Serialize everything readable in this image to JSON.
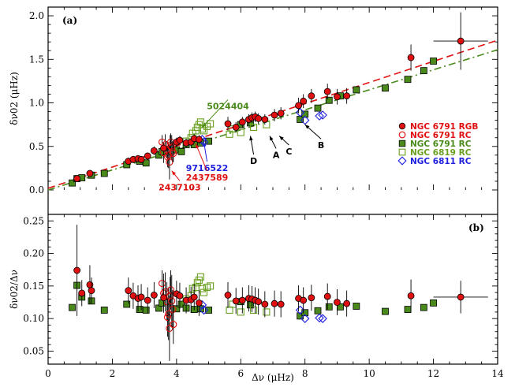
{
  "chart_data": [
    {
      "panel": "(a)",
      "type": "scatter",
      "xlabel": "Δν (μHz)",
      "ylabel": "δν02 (μHz)",
      "xlim": [
        0,
        14
      ],
      "ylim": [
        0,
        2.1
      ],
      "yticks": [
        "0.0",
        "0.5",
        "1.0",
        "1.5",
        "2.0"
      ],
      "legend": {
        "placement": "right-middle",
        "entries": [
          {
            "label": "NGC 6791 RGB",
            "marker": "filled-circle",
            "color": "#e01010"
          },
          {
            "label": "NGC 6791 RC",
            "marker": "open-circle",
            "color": "#e01010"
          },
          {
            "label": "NGC 6791 RC",
            "marker": "filled-square",
            "color": "#4a8a1a"
          },
          {
            "label": "NGC 6819 RC",
            "marker": "open-square",
            "color": "#6aa020"
          },
          {
            "label": "NGC 6811 RC",
            "marker": "open-diamond",
            "color": "#2020e0"
          }
        ]
      },
      "fit_lines": [
        {
          "style": "dashed",
          "color": "#e01010",
          "x": [
            0,
            14
          ],
          "y": [
            0.02,
            1.72
          ]
        },
        {
          "style": "dash-dot",
          "color": "#4a8a1a",
          "x": [
            0,
            14
          ],
          "y": [
            0.0,
            1.61
          ]
        }
      ],
      "annotations": [
        {
          "text": "5024404",
          "color": "#4a8a1a",
          "point": [
            4.8,
            0.72
          ],
          "label_at": [
            5.6,
            1.0
          ]
        },
        {
          "text": "9716522",
          "color": "#2020e0",
          "point": [
            4.85,
            0.55
          ],
          "label_at": [
            4.95,
            0.29
          ]
        },
        {
          "text": "2437589",
          "color": "#e01010",
          "point": [
            4.6,
            0.53
          ],
          "label_at": [
            4.95,
            0.18
          ]
        },
        {
          "text": "2437103",
          "color": "#e01010",
          "point": [
            3.85,
            0.22
          ],
          "label_at": [
            4.1,
            0.07
          ]
        },
        {
          "text": "D",
          "color": "#000000",
          "point": [
            6.3,
            0.62
          ],
          "label_at": [
            6.4,
            0.37
          ]
        },
        {
          "text": "A",
          "color": "#000000",
          "point": [
            6.9,
            0.62
          ],
          "label_at": [
            7.1,
            0.44
          ]
        },
        {
          "text": "C",
          "color": "#000000",
          "point": [
            7.2,
            0.62
          ],
          "label_at": [
            7.5,
            0.48
          ]
        },
        {
          "text": "B",
          "color": "#000000",
          "point": [
            8.0,
            0.75
          ],
          "label_at": [
            8.5,
            0.55
          ]
        }
      ],
      "series": [
        {
          "name": "NGC 6791 RGB",
          "marker": "filled-circle",
          "color": "#e01010",
          "x": [
            0.9,
            1.3,
            2.5,
            2.65,
            2.8,
            2.9,
            3.1,
            3.3,
            3.6,
            4.0,
            4.1,
            4.3,
            4.45,
            4.55,
            4.7,
            5.6,
            5.85,
            6.05,
            6.25,
            6.35,
            6.45,
            6.55,
            6.75,
            7.05,
            7.25,
            7.8,
            7.95,
            8.2,
            8.7,
            9.0,
            9.3,
            11.3,
            12.85
          ],
          "y": [
            0.13,
            0.19,
            0.33,
            0.35,
            0.36,
            0.35,
            0.39,
            0.45,
            0.48,
            0.55,
            0.57,
            0.54,
            0.55,
            0.59,
            0.58,
            0.76,
            0.72,
            0.78,
            0.81,
            0.83,
            0.84,
            0.82,
            0.81,
            0.86,
            0.88,
            0.97,
            1.02,
            1.08,
            1.13,
            1.07,
            1.08,
            1.52,
            1.71
          ],
          "yerr": [
            0.04,
            0.04,
            0.04,
            0.04,
            0.04,
            0.04,
            0.04,
            0.05,
            0.05,
            0.05,
            0.05,
            0.05,
            0.05,
            0.05,
            0.05,
            0.08,
            0.06,
            0.06,
            0.06,
            0.06,
            0.06,
            0.06,
            0.06,
            0.07,
            0.07,
            0.09,
            0.08,
            0.08,
            0.09,
            0.09,
            0.09,
            0.15,
            0.33
          ]
        },
        {
          "name": "NGC 6791 RC",
          "marker": "open-circle",
          "color": "#e01010",
          "x": [
            3.55,
            3.6,
            3.65,
            3.7,
            3.72,
            3.75,
            3.78,
            3.8,
            3.82,
            3.85,
            3.88,
            3.9
          ],
          "y": [
            0.55,
            0.43,
            0.52,
            0.46,
            0.38,
            0.4,
            0.32,
            0.51,
            0.55,
            0.49,
            0.44,
            0.42
          ],
          "yerr": [
            0.08,
            0.12,
            0.12,
            0.1,
            0.12,
            0.15,
            0.2,
            0.12,
            0.1,
            0.14,
            0.12,
            0.1
          ]
        },
        {
          "name": "NGC 6791 RC",
          "marker": "filled-square",
          "color": "#4a8a1a",
          "x": [
            0.75,
            0.9,
            1.05,
            1.35,
            1.75,
            2.45,
            2.85,
            3.05,
            3.45,
            3.55,
            4.0,
            4.15,
            4.3,
            4.55,
            4.75,
            5.0,
            6.0,
            6.3,
            7.85,
            8.0,
            8.4,
            8.75,
            9.1,
            9.6,
            10.5,
            11.2,
            11.7,
            12.0
          ],
          "y": [
            0.08,
            0.13,
            0.14,
            0.17,
            0.19,
            0.29,
            0.33,
            0.31,
            0.4,
            0.44,
            0.46,
            0.44,
            0.52,
            0.52,
            0.54,
            0.56,
            0.75,
            0.77,
            0.81,
            0.87,
            0.94,
            1.03,
            1.08,
            1.15,
            1.17,
            1.27,
            1.37,
            1.48
          ]
        },
        {
          "name": "NGC 6819 RC",
          "marker": "open-square",
          "color": "#6aa020",
          "x": [
            4.3,
            4.45,
            4.5,
            4.6,
            4.65,
            4.7,
            4.75,
            4.8,
            4.85,
            4.95,
            5.05,
            5.65,
            5.75,
            6.0,
            6.4,
            6.8
          ],
          "y": [
            0.56,
            0.6,
            0.65,
            0.68,
            0.72,
            0.75,
            0.78,
            0.7,
            0.68,
            0.73,
            0.76,
            0.64,
            0.7,
            0.66,
            0.72,
            0.75
          ]
        },
        {
          "name": "NGC 6811 RC",
          "marker": "open-diamond",
          "color": "#2020e0",
          "x": [
            4.8,
            4.85,
            7.85,
            8.0,
            8.45,
            8.55
          ],
          "y": [
            0.58,
            0.55,
            0.89,
            0.8,
            0.85,
            0.86
          ]
        }
      ]
    },
    {
      "panel": "(b)",
      "type": "scatter",
      "xlabel": "Δν (μHz)",
      "ylabel": "δν02/Δν",
      "xlim": [
        0,
        14
      ],
      "ylim": [
        0.03,
        0.26
      ],
      "yticks": [
        "0.05",
        "0.10",
        "0.15",
        "0.20",
        "0.25"
      ],
      "xticks": [
        "0",
        "2",
        "4",
        "6",
        "8",
        "10",
        "12",
        "14"
      ],
      "series": [
        {
          "name": "NGC 6791 RGB",
          "marker": "filled-circle",
          "color": "#e01010",
          "x": [
            0.9,
            1.05,
            1.3,
            1.35,
            2.5,
            2.65,
            2.8,
            2.9,
            3.1,
            3.3,
            3.6,
            4.0,
            4.1,
            4.3,
            4.45,
            4.55,
            4.7,
            5.6,
            5.85,
            6.05,
            6.25,
            6.35,
            6.45,
            6.55,
            6.75,
            7.05,
            7.25,
            7.8,
            7.95,
            8.2,
            8.7,
            9.0,
            9.3,
            11.3,
            12.85
          ],
          "y": [
            0.174,
            0.139,
            0.152,
            0.143,
            0.143,
            0.135,
            0.131,
            0.133,
            0.128,
            0.136,
            0.132,
            0.138,
            0.135,
            0.128,
            0.129,
            0.133,
            0.124,
            0.136,
            0.127,
            0.128,
            0.131,
            0.13,
            0.128,
            0.126,
            0.122,
            0.123,
            0.122,
            0.131,
            0.128,
            0.132,
            0.134,
            0.125,
            0.123,
            0.135,
            0.133
          ],
          "yerr": [
            0.07,
            0.02,
            0.03,
            0.02,
            0.02,
            0.02,
            0.02,
            0.02,
            0.02,
            0.02,
            0.02,
            0.02,
            0.02,
            0.02,
            0.02,
            0.02,
            0.02,
            0.02,
            0.02,
            0.02,
            0.02,
            0.02,
            0.02,
            0.02,
            0.02,
            0.02,
            0.02,
            0.02,
            0.02,
            0.02,
            0.02,
            0.02,
            0.02,
            0.025,
            0.025
          ]
        },
        {
          "name": "NGC 6791 RC",
          "marker": "open-circle",
          "color": "#e01010",
          "x": [
            3.55,
            3.6,
            3.65,
            3.7,
            3.72,
            3.75,
            3.78,
            3.8,
            3.82,
            3.85,
            3.88,
            3.9
          ],
          "y": [
            0.154,
            0.139,
            0.141,
            0.126,
            0.102,
            0.107,
            0.085,
            0.134,
            0.144,
            0.127,
            0.114,
            0.091
          ],
          "yerr": [
            0.02,
            0.03,
            0.03,
            0.03,
            0.03,
            0.04,
            0.05,
            0.03,
            0.03,
            0.04,
            0.03,
            0.03
          ]
        },
        {
          "name": "NGC 6791 RC",
          "marker": "filled-square",
          "color": "#4a8a1a",
          "x": [
            0.75,
            0.9,
            1.05,
            1.35,
            1.75,
            2.45,
            2.85,
            3.05,
            3.45,
            3.55,
            4.0,
            4.15,
            4.3,
            4.55,
            4.75,
            5.0,
            6.0,
            6.3,
            7.85,
            8.0,
            8.4,
            8.75,
            9.1,
            9.6,
            10.5,
            11.2,
            11.7,
            12.0
          ],
          "y": [
            0.117,
            0.151,
            0.133,
            0.127,
            0.113,
            0.122,
            0.114,
            0.113,
            0.116,
            0.124,
            0.115,
            0.122,
            0.116,
            0.114,
            0.115,
            0.113,
            0.126,
            0.121,
            0.104,
            0.109,
            0.112,
            0.118,
            0.118,
            0.119,
            0.111,
            0.114,
            0.117,
            0.124
          ]
        },
        {
          "name": "NGC 6819 RC",
          "marker": "open-square",
          "color": "#6aa020",
          "x": [
            4.3,
            4.45,
            4.5,
            4.6,
            4.65,
            4.7,
            4.75,
            4.8,
            4.85,
            4.95,
            5.05,
            5.65,
            5.75,
            6.0,
            6.4,
            6.8
          ],
          "y": [
            0.13,
            0.135,
            0.146,
            0.148,
            0.155,
            0.159,
            0.164,
            0.146,
            0.14,
            0.148,
            0.15,
            0.113,
            0.122,
            0.11,
            0.113,
            0.11
          ]
        },
        {
          "name": "NGC 6811 RC",
          "marker": "open-diamond",
          "color": "#2020e0",
          "x": [
            4.8,
            4.85,
            7.85,
            8.0,
            8.45,
            8.55
          ],
          "y": [
            0.121,
            0.113,
            0.113,
            0.1,
            0.101,
            0.1
          ]
        }
      ]
    }
  ]
}
